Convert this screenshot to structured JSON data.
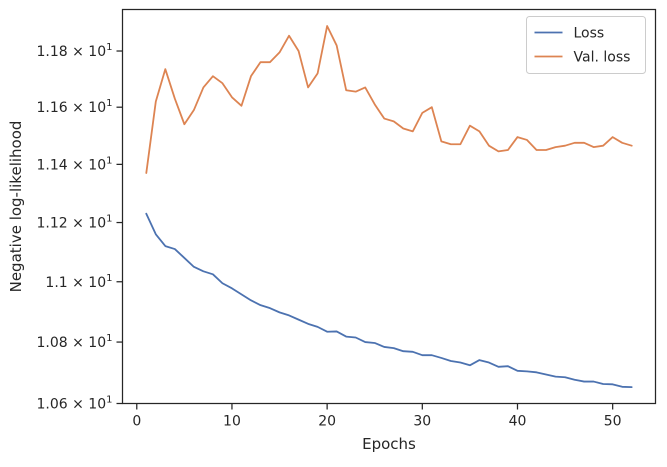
{
  "chart_data": {
    "type": "line",
    "xlabel": "Epochs",
    "ylabel": "Negative log-likelihood",
    "xlim": [
      -1.5,
      54.5
    ],
    "ylim": [
      10.6,
      11.95
    ],
    "yscale": "log",
    "xticks": [
      0,
      10,
      20,
      30,
      40,
      50
    ],
    "xtick_labels": [
      "0",
      "10",
      "20",
      "30",
      "40",
      "50"
    ],
    "yticks": [
      10.6,
      10.8,
      11.0,
      11.2,
      11.4,
      11.6,
      11.8
    ],
    "ytick_labels": [
      [
        "1.06",
        "10",
        "1"
      ],
      [
        "1.08",
        "10",
        "1"
      ],
      [
        "1.1",
        "10",
        "1"
      ],
      [
        "1.12",
        "10",
        "1"
      ],
      [
        "1.14",
        "10",
        "1"
      ],
      [
        "1.16",
        "10",
        "1"
      ],
      [
        "1.18",
        "10",
        "1"
      ]
    ],
    "grid": false,
    "legend_position": "top-right",
    "x": [
      1,
      2,
      3,
      4,
      5,
      6,
      7,
      8,
      9,
      10,
      11,
      12,
      13,
      14,
      15,
      16,
      17,
      18,
      19,
      20,
      21,
      22,
      23,
      24,
      25,
      26,
      27,
      28,
      29,
      30,
      31,
      32,
      33,
      34,
      35,
      36,
      37,
      38,
      39,
      40,
      41,
      42,
      43,
      44,
      45,
      46,
      47,
      48,
      49,
      50,
      51,
      52
    ],
    "series": [
      {
        "name": "Loss",
        "color": "#4c72b0",
        "values": [
          11.23,
          11.16,
          11.12,
          11.11,
          11.08,
          11.05,
          11.035,
          11.025,
          10.995,
          10.978,
          10.958,
          10.938,
          10.922,
          10.912,
          10.898,
          10.888,
          10.874,
          10.86,
          10.85,
          10.834,
          10.835,
          10.818,
          10.815,
          10.8,
          10.797,
          10.784,
          10.78,
          10.77,
          10.768,
          10.757,
          10.757,
          10.748,
          10.738,
          10.733,
          10.724,
          10.741,
          10.733,
          10.719,
          10.721,
          10.706,
          10.704,
          10.701,
          10.694,
          10.687,
          10.685,
          10.677,
          10.671,
          10.671,
          10.663,
          10.662,
          10.654,
          10.653
        ]
      },
      {
        "name": "Val. loss",
        "color": "#dd8452",
        "values": [
          11.37,
          11.62,
          11.735,
          11.63,
          11.54,
          11.59,
          11.67,
          11.71,
          11.685,
          11.635,
          11.605,
          11.71,
          11.76,
          11.76,
          11.795,
          11.855,
          11.8,
          11.67,
          11.72,
          11.89,
          11.82,
          11.66,
          11.655,
          11.67,
          11.61,
          11.56,
          11.55,
          11.525,
          11.515,
          11.58,
          11.6,
          11.48,
          11.47,
          11.47,
          11.535,
          11.515,
          11.465,
          11.445,
          11.45,
          11.495,
          11.485,
          11.45,
          11.45,
          11.46,
          11.465,
          11.475,
          11.475,
          11.46,
          11.465,
          11.495,
          11.475,
          11.465
        ]
      }
    ]
  }
}
